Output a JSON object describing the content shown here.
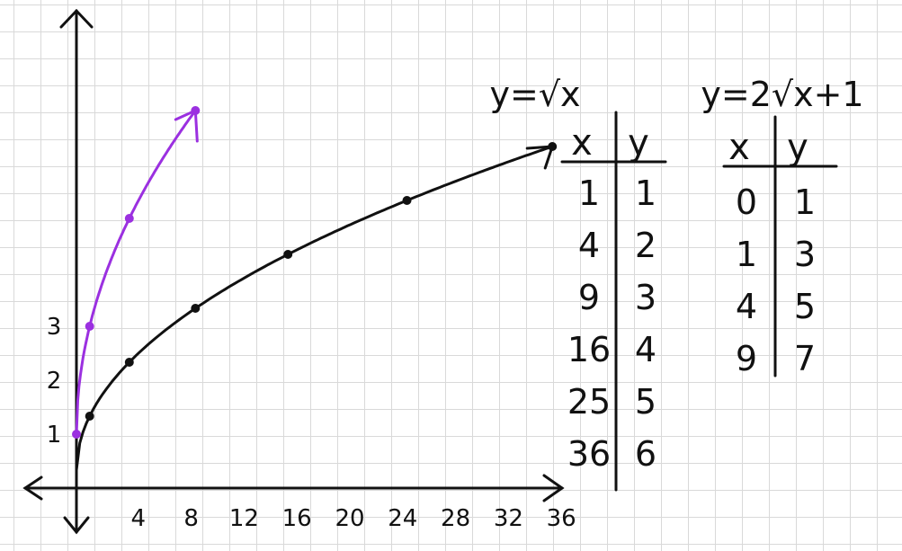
{
  "chart_data": {
    "type": "line",
    "x_ticks": [
      4,
      8,
      12,
      16,
      20,
      24,
      28,
      32,
      36
    ],
    "y_ticks": [
      1,
      2,
      3
    ],
    "series": [
      {
        "name": "y=√x",
        "color": "#111111",
        "points": [
          [
            0,
            0
          ],
          [
            1,
            1
          ],
          [
            4,
            2
          ],
          [
            9,
            3
          ],
          [
            16,
            4
          ],
          [
            25,
            5
          ],
          [
            36,
            6
          ]
        ]
      },
      {
        "name": "y=2√x+1",
        "color": "#9b30e0",
        "points": [
          [
            0,
            1
          ],
          [
            1,
            3
          ],
          [
            4,
            5
          ],
          [
            9,
            7
          ]
        ]
      }
    ],
    "tables": [
      {
        "title": "y=√x",
        "headers": [
          "x",
          "y"
        ],
        "rows": [
          [
            "1",
            "1"
          ],
          [
            "4",
            "2"
          ],
          [
            "9",
            "3"
          ],
          [
            "16",
            "4"
          ],
          [
            "25",
            "5"
          ],
          [
            "36",
            "6"
          ]
        ]
      },
      {
        "title": "y=2√x+1",
        "headers": [
          "x",
          "y"
        ],
        "rows": [
          [
            "0",
            "1"
          ],
          [
            "1",
            "3"
          ],
          [
            "4",
            "5"
          ],
          [
            "9",
            "7"
          ]
        ]
      }
    ]
  }
}
